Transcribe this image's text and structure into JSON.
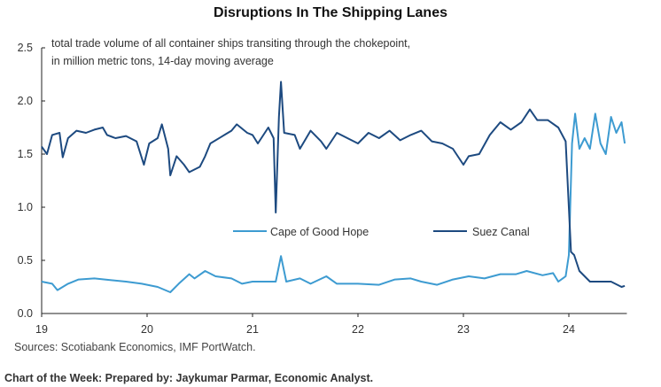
{
  "chart_data": {
    "type": "line",
    "title": "Disruptions In The Shipping Lanes",
    "subtitle": [
      "total trade volume of all container ships transiting through the chokepoint,",
      "in million metric tons, 14-day moving average"
    ],
    "xlabel": "",
    "ylabel": "",
    "xlim": [
      19,
      24.55
    ],
    "ylim": [
      0,
      2.5
    ],
    "xticks": [
      19,
      20,
      21,
      22,
      23,
      24
    ],
    "xtick_labels": [
      "19",
      "20",
      "21",
      "22",
      "23",
      "24"
    ],
    "yticks": [
      0,
      0.5,
      1,
      1.5,
      2,
      2.5
    ],
    "ytick_labels": [
      "0.0",
      "0.5",
      "1.0",
      "1.5",
      "2.0",
      "2.5"
    ],
    "grid": false,
    "legend_placement": "center",
    "series": [
      {
        "name": "Cape of Good Hope",
        "color": "#3d9bd1",
        "x": [
          19.0,
          19.1,
          19.15,
          19.25,
          19.35,
          19.5,
          19.6,
          19.8,
          19.95,
          20.1,
          20.22,
          20.3,
          20.4,
          20.45,
          20.55,
          20.65,
          20.8,
          20.9,
          21.0,
          21.15,
          21.22,
          21.27,
          21.32,
          21.45,
          21.55,
          21.7,
          21.8,
          22.0,
          22.2,
          22.35,
          22.5,
          22.6,
          22.75,
          22.9,
          23.05,
          23.2,
          23.35,
          23.5,
          23.6,
          23.75,
          23.85,
          23.9,
          23.97,
          24.0,
          24.03,
          24.06,
          24.1,
          24.15,
          24.2,
          24.25,
          24.3,
          24.35,
          24.4,
          24.45,
          24.5,
          24.53
        ],
        "values": [
          0.3,
          0.28,
          0.22,
          0.28,
          0.32,
          0.33,
          0.32,
          0.3,
          0.28,
          0.25,
          0.2,
          0.28,
          0.37,
          0.33,
          0.4,
          0.35,
          0.33,
          0.28,
          0.3,
          0.3,
          0.3,
          0.54,
          0.3,
          0.33,
          0.28,
          0.35,
          0.28,
          0.28,
          0.27,
          0.32,
          0.33,
          0.3,
          0.27,
          0.32,
          0.35,
          0.33,
          0.37,
          0.37,
          0.4,
          0.36,
          0.38,
          0.3,
          0.35,
          0.55,
          1.6,
          1.88,
          1.55,
          1.65,
          1.55,
          1.88,
          1.6,
          1.5,
          1.85,
          1.7,
          1.8,
          1.6
        ]
      },
      {
        "name": "Suez Canal",
        "color": "#1d4a80",
        "x": [
          19.0,
          19.05,
          19.1,
          19.17,
          19.2,
          19.25,
          19.33,
          19.42,
          19.5,
          19.58,
          19.62,
          19.7,
          19.8,
          19.9,
          19.97,
          20.02,
          20.1,
          20.14,
          20.2,
          20.22,
          20.28,
          20.35,
          20.4,
          20.5,
          20.55,
          20.6,
          20.7,
          20.8,
          20.85,
          20.95,
          21.0,
          21.05,
          21.15,
          21.2,
          21.22,
          21.25,
          21.27,
          21.3,
          21.4,
          21.45,
          21.55,
          21.65,
          21.7,
          21.8,
          21.9,
          22.0,
          22.1,
          22.2,
          22.3,
          22.4,
          22.5,
          22.6,
          22.7,
          22.8,
          22.9,
          23.0,
          23.05,
          23.15,
          23.25,
          23.35,
          23.45,
          23.55,
          23.63,
          23.7,
          23.8,
          23.9,
          23.97,
          24.0,
          24.02,
          24.05,
          24.1,
          24.2,
          24.3,
          24.4,
          24.5,
          24.53
        ],
        "values": [
          1.57,
          1.5,
          1.68,
          1.7,
          1.47,
          1.65,
          1.72,
          1.7,
          1.73,
          1.75,
          1.68,
          1.65,
          1.67,
          1.62,
          1.4,
          1.6,
          1.65,
          1.78,
          1.55,
          1.3,
          1.48,
          1.4,
          1.33,
          1.38,
          1.48,
          1.6,
          1.66,
          1.72,
          1.78,
          1.7,
          1.68,
          1.6,
          1.75,
          1.65,
          0.95,
          1.85,
          2.18,
          1.7,
          1.68,
          1.55,
          1.72,
          1.62,
          1.55,
          1.7,
          1.65,
          1.6,
          1.7,
          1.65,
          1.72,
          1.63,
          1.68,
          1.72,
          1.62,
          1.6,
          1.55,
          1.4,
          1.48,
          1.5,
          1.68,
          1.8,
          1.73,
          1.8,
          1.92,
          1.82,
          1.82,
          1.75,
          1.62,
          1.0,
          0.58,
          0.55,
          0.4,
          0.3,
          0.3,
          0.3,
          0.25,
          0.26
        ]
      }
    ]
  },
  "sources": "Sources: Scotiabank Economics, IMF PortWatch.",
  "footer": "Chart of the Week: Prepared by: Jaykumar Parmar, Economic Analyst."
}
